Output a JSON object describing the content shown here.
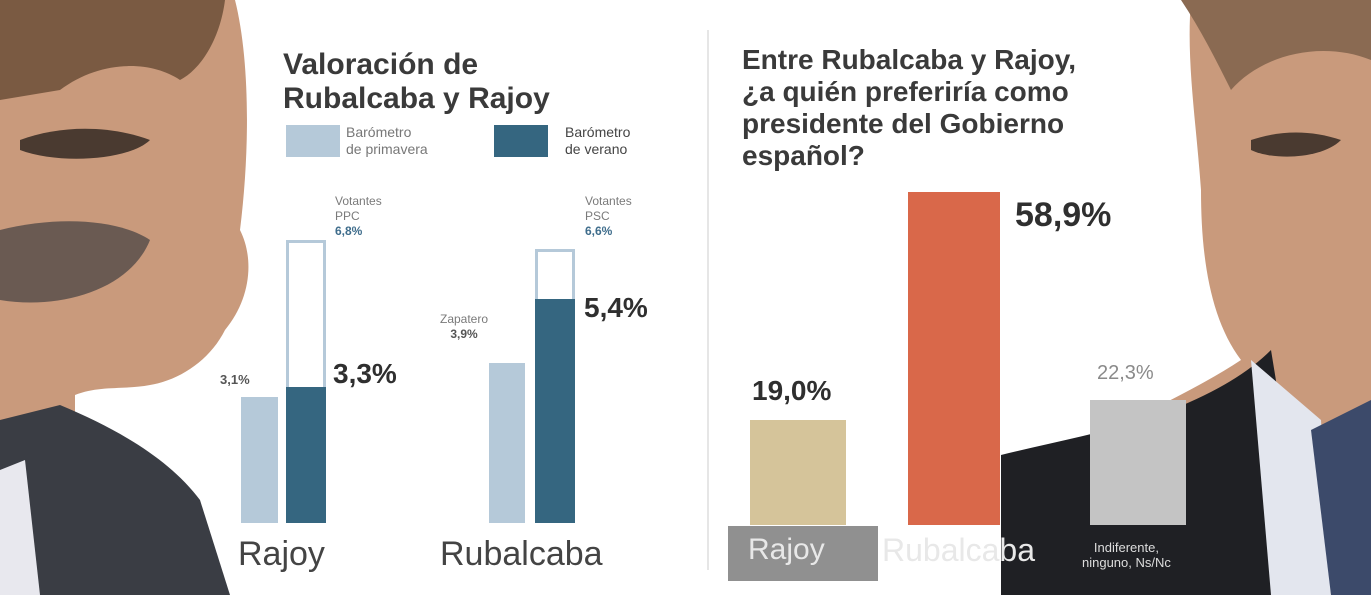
{
  "colors": {
    "primavera": "#b5c9d9",
    "verano": "#356680",
    "rajoy_pref": "#d5c49a",
    "rubalcaba_pref": "#d9684a",
    "neutral_pref": "#c4c4c4"
  },
  "chart_data": [
    {
      "type": "bar",
      "title": "Valoración de Rubalcaba y Rajoy",
      "categories": [
        "Rajoy",
        "Rubalcaba"
      ],
      "series": [
        {
          "name": "Barómetro de primavera",
          "values": [
            3.1,
            3.9
          ]
        },
        {
          "name": "Barómetro de verano",
          "values": [
            3.3,
            5.4
          ]
        }
      ],
      "value_labels": {
        "primavera": [
          "3,1%",
          "3,9%"
        ],
        "verano": [
          "3,3%",
          "5,4%"
        ]
      },
      "annotations": [
        {
          "category": "Rajoy",
          "label": "Votantes PPC",
          "value": 6.8,
          "text": "6,8%"
        },
        {
          "category": "Rubalcaba",
          "label": "Votantes PSC",
          "value": 6.6,
          "text": "6,6%"
        },
        {
          "category": "Rubalcaba",
          "label": "Zapatero",
          "value": 3.9,
          "text": "3,9%"
        }
      ],
      "legend": [
        "Barómetro de primavera",
        "Barómetro de verano"
      ],
      "ylim": [
        0,
        7.5
      ]
    },
    {
      "type": "bar",
      "title": "Entre Rubalcaba y Rajoy, ¿a quién preferiría como presidente del Gobierno español?",
      "categories": [
        "Rajoy",
        "Rubalcaba",
        "Indiferente, ninguno, Ns/Nc"
      ],
      "values": [
        19.0,
        58.9,
        22.3
      ],
      "value_labels": [
        "19,0%",
        "58,9%",
        "22,3%"
      ],
      "ylim": [
        0,
        60
      ]
    }
  ],
  "left": {
    "title_line1": "Valoración de",
    "title_line2": "Rubalcaba y Rajoy",
    "legend_primavera_1": "Barómetro",
    "legend_primavera_2": "de primavera",
    "legend_verano_1": "Barómetro",
    "legend_verano_2": "de verano",
    "rajoy_ann_1": "Votantes",
    "rajoy_ann_2": "PPC",
    "rajoy_ann_val": "6,8%",
    "rub_ann_1": "Votantes",
    "rub_ann_2": "PSC",
    "rub_ann_val": "6,6%",
    "zapatero_1": "Zapatero",
    "zapatero_2": "3,9%",
    "rajoy_prim": "3,1%",
    "rajoy_ver": "3,3%",
    "rub_ver": "5,4%",
    "cat_rajoy": "Rajoy",
    "cat_rub": "Rubalcaba"
  },
  "right": {
    "title_1": "Entre Rubalcaba y Rajoy,",
    "title_2": "¿a quién preferiría como",
    "title_3": "presidente del Gobierno",
    "title_4": "español?",
    "val_rajoy": "19,0%",
    "val_rub": "58,9%",
    "val_neutral": "22,3%",
    "cat_rajoy": "Rajoy",
    "cat_rub": "Rubalcaba",
    "cat_neutral_1": "Indiferente,",
    "cat_neutral_2": "ninguno, Ns/Nc"
  }
}
